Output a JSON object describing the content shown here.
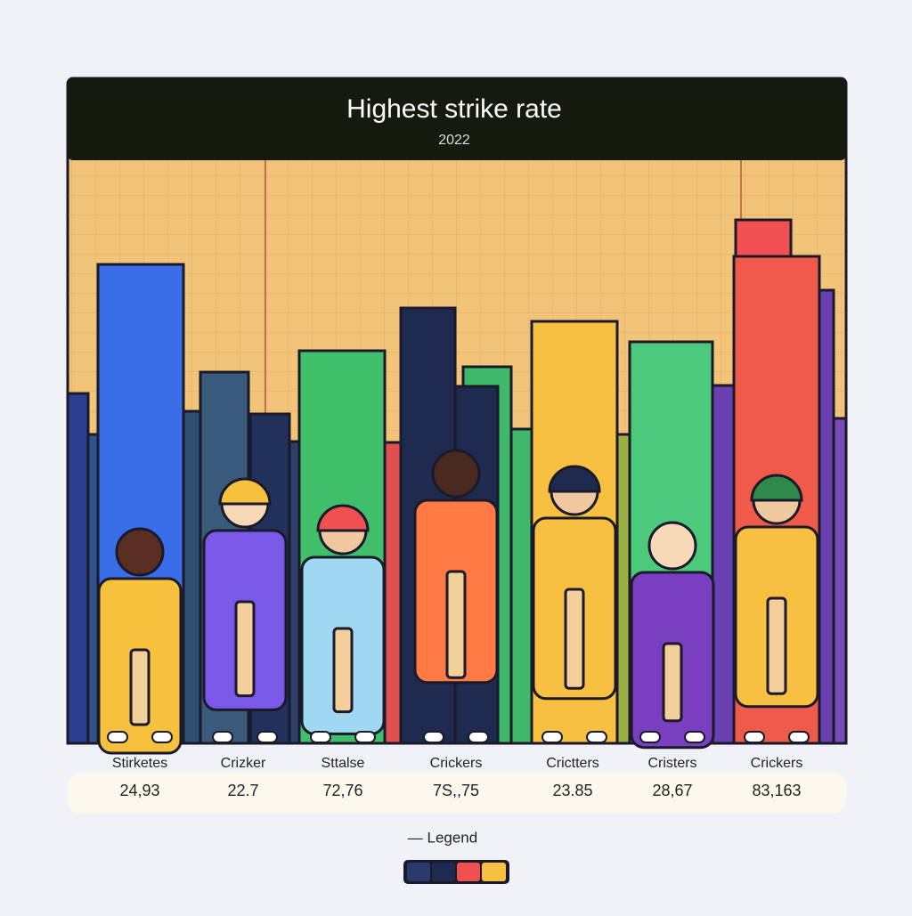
{
  "header": {
    "title": "Highest strike rate",
    "subtitle": "2022"
  },
  "columns": [
    {
      "label": "Stirketes",
      "value": "24,93"
    },
    {
      "label": "Crizker",
      "value": "22.7"
    },
    {
      "label": "Sttalse",
      "value": "72,76"
    },
    {
      "label": "Crickers",
      "value": "7S,,75"
    },
    {
      "label": "Crictters",
      "value": "23.85"
    },
    {
      "label": "Cristers",
      "value": "28,67"
    },
    {
      "label": "Crickers",
      "value": "83,163"
    }
  ],
  "legend": {
    "label": "— Legend"
  }
}
